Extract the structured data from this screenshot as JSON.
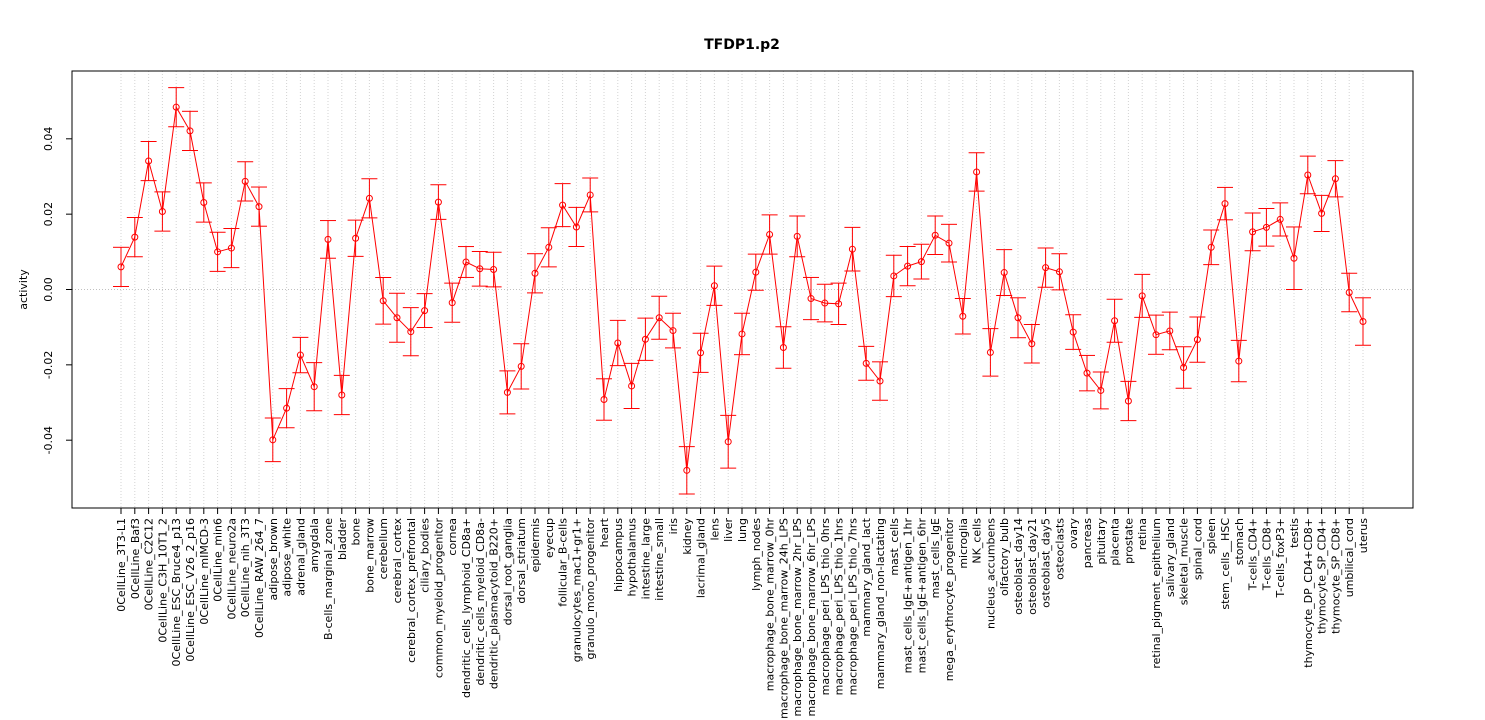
{
  "chart_data": {
    "type": "line",
    "title": "TFDP1.p2",
    "xlabel": "",
    "ylabel": "activity",
    "ylim": [
      -0.058,
      0.058
    ],
    "yticks": [
      -0.04,
      -0.02,
      0.0,
      0.02,
      0.04
    ],
    "ytick_labels": [
      "-0.04",
      "-0.02",
      "0.00",
      "0.02",
      "0.04"
    ],
    "grid": "vertical dotted lines per category, dotted zero line",
    "line_color": "#ff0000",
    "categories": [
      "0CellLine_3T3-L1",
      "0CellLine_Baf3",
      "0CellLine_C2C12",
      "0CellLine_C3H_10T1_2",
      "0CellLine_ESC_Bruce4_p13",
      "0CellLine_ESC_V26_2_p16",
      "0CellLine_mIMCD-3",
      "0CellLine_min6",
      "0CellLine_neuro2a",
      "0CellLine_nih_3T3",
      "0CellLine_RAW_264_7",
      "adipose_brown",
      "adipose_white",
      "adrenal_gland",
      "amygdala",
      "B-cells_marginal_zone",
      "bladder",
      "bone",
      "bone_marrow",
      "cerebellum",
      "cerebral_cortex",
      "cerebral_cortex_prefrontal",
      "ciliary_bodies",
      "common_myeloid_progenitor",
      "cornea",
      "dendritic_cells_lymphoid_CD8a+",
      "dendritic_cells_myeloid_CD8a-",
      "dendritic_plasmacytoid_B220+",
      "dorsal_root_ganglia",
      "dorsal_striatum",
      "epidermis",
      "eyecup",
      "follicular_B-cells",
      "granulocytes_mac1+gr1+",
      "granulo_mono_progenitor",
      "heart",
      "hippocampus",
      "hypothalamus",
      "intestine_large",
      "intestine_small",
      "iris",
      "kidney",
      "lacrimal_gland",
      "lens",
      "liver",
      "lung",
      "lymph_nodes",
      "macrophage_bone_marrow_0hr",
      "macrophage_bone_marrow_24h_LPS",
      "macrophage_bone_marrow_2hr_LPS",
      "macrophage_bone_marrow_6hr_LPS",
      "macrophage_peri_LPS_thio_0hrs",
      "macrophage_peri_LPS_thio_1hrs",
      "macrophage_peri_LPS_thio_7hrs",
      "mammary_gland_lact",
      "mammary_gland_non-lactating",
      "mast_cells",
      "mast_cells_IgE+antigen_1hr",
      "mast_cells_IgE+antigen_6hr",
      "mast_cells_IgE",
      "mega_erythrocyte_progenitor",
      "microglia",
      "NK_cells",
      "nucleus_accumbens",
      "olfactory_bulb",
      "osteoblast_day14",
      "osteoblast_day21",
      "osteoblast_day5",
      "osteoclasts",
      "ovary",
      "pancreas",
      "pituitary",
      "placenta",
      "prostate",
      "retina",
      "retinal_pigment_epithelium",
      "salivary_gland",
      "skeletal_muscle",
      "spinal_cord",
      "spleen",
      "stem_cells__HSC",
      "stomach",
      "T-cells_CD4+",
      "T-cells_CD8+",
      "T-cells_foxP3+",
      "testis",
      "thymocyte_DP_CD4+CD8+",
      "thymocyte_SP_CD4+",
      "thymocyte_SP_CD8+",
      "umbilical_cord",
      "uterus"
    ],
    "values": [
      0.006,
      0.0139,
      0.0341,
      0.0207,
      0.0484,
      0.0421,
      0.0231,
      0.01,
      0.011,
      0.0287,
      0.022,
      -0.0399,
      -0.0315,
      -0.0174,
      -0.0258,
      0.0133,
      -0.028,
      0.0136,
      0.0242,
      -0.003,
      -0.0075,
      -0.0112,
      -0.0056,
      0.0232,
      -0.0035,
      0.0073,
      0.0055,
      0.0053,
      -0.0273,
      -0.0204,
      0.0043,
      0.0112,
      0.0224,
      0.0166,
      0.0251,
      -0.0292,
      -0.0142,
      -0.0256,
      -0.0132,
      -0.0075,
      -0.0109,
      -0.048,
      -0.0168,
      0.001,
      -0.0404,
      -0.0118,
      0.0046,
      0.0146,
      -0.0154,
      0.0141,
      -0.0024,
      -0.0036,
      -0.0038,
      0.0107,
      -0.0196,
      -0.0243,
      0.0036,
      0.0062,
      0.0074,
      0.0144,
      0.0123,
      -0.0071,
      0.0312,
      -0.0167,
      0.0045,
      -0.0075,
      -0.0144,
      0.0058,
      0.0047,
      -0.0113,
      -0.0222,
      -0.0268,
      -0.0083,
      -0.0296,
      -0.0017,
      -0.012,
      -0.011,
      -0.0207,
      -0.0133,
      0.0112,
      0.0228,
      -0.019,
      0.0153,
      0.0165,
      0.0186,
      0.0083,
      0.0304,
      0.0202,
      0.0294,
      -0.0008,
      -0.0085
    ],
    "errors": [
      0.0052,
      0.0052,
      0.0052,
      0.0052,
      0.0052,
      0.0052,
      0.0052,
      0.0052,
      0.0052,
      0.0052,
      0.0052,
      0.0058,
      0.0052,
      0.0047,
      0.0064,
      0.005,
      0.0052,
      0.0048,
      0.0052,
      0.0062,
      0.0065,
      0.0064,
      0.0045,
      0.0046,
      0.0052,
      0.0041,
      0.0046,
      0.0046,
      0.0057,
      0.006,
      0.0052,
      0.0052,
      0.0057,
      0.0052,
      0.0045,
      0.0055,
      0.006,
      0.006,
      0.0056,
      0.0057,
      0.0046,
      0.0063,
      0.0052,
      0.0052,
      0.007,
      0.0055,
      0.0048,
      0.0052,
      0.0055,
      0.0054,
      0.0056,
      0.005,
      0.0055,
      0.0058,
      0.0045,
      0.0051,
      0.0055,
      0.0052,
      0.0046,
      0.0051,
      0.005,
      0.0047,
      0.0051,
      0.0063,
      0.0061,
      0.0053,
      0.0051,
      0.0052,
      0.0048,
      0.0046,
      0.0047,
      0.0049,
      0.0057,
      0.0052,
      0.0057,
      0.0052,
      0.005,
      0.0055,
      0.006,
      0.0046,
      0.0043,
      0.0055,
      0.005,
      0.005,
      0.0044,
      0.0083,
      0.005,
      0.0048,
      0.0048,
      0.0051,
      0.0063
    ]
  }
}
